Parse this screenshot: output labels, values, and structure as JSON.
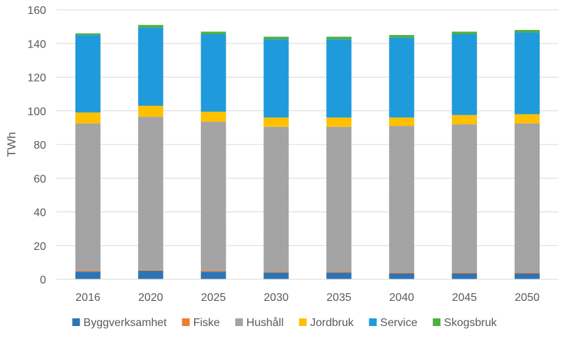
{
  "chart_data": {
    "type": "bar",
    "stacked": true,
    "title": "",
    "xlabel": "",
    "ylabel": "TWh",
    "ylim": [
      0,
      160
    ],
    "yticks": [
      0,
      20,
      40,
      60,
      80,
      100,
      120,
      140,
      160
    ],
    "grid": true,
    "legend_position": "bottom",
    "categories": [
      "2016",
      "2020",
      "2025",
      "2030",
      "2035",
      "2040",
      "2045",
      "2050"
    ],
    "series": [
      {
        "name": "Byggverksamhet",
        "color": "#2E74B5",
        "values": [
          4.5,
          5,
          4.5,
          4,
          4,
          3.5,
          3.5,
          3.5
        ]
      },
      {
        "name": "Fiske",
        "color": "#ED7D31",
        "values": [
          0.5,
          0.5,
          0.5,
          0.5,
          0.5,
          0.5,
          0.5,
          0.5
        ]
      },
      {
        "name": "Hushåll",
        "color": "#A5A5A5",
        "values": [
          87.5,
          91,
          88.5,
          86,
          86,
          87,
          88,
          88.5
        ]
      },
      {
        "name": "Jordbruk",
        "color": "#FFC000",
        "values": [
          6.5,
          6.5,
          6,
          5.5,
          5.5,
          5,
          5.5,
          5.5
        ]
      },
      {
        "name": "Service",
        "color": "#1F9BDB",
        "values": [
          46,
          46.5,
          46,
          46.5,
          46.5,
          47.5,
          48,
          48.5
        ]
      },
      {
        "name": "Skogsbruk",
        "color": "#4EAF3F",
        "values": [
          1,
          1.5,
          1.5,
          1.5,
          1.5,
          1.5,
          1.5,
          1.5
        ]
      }
    ]
  }
}
